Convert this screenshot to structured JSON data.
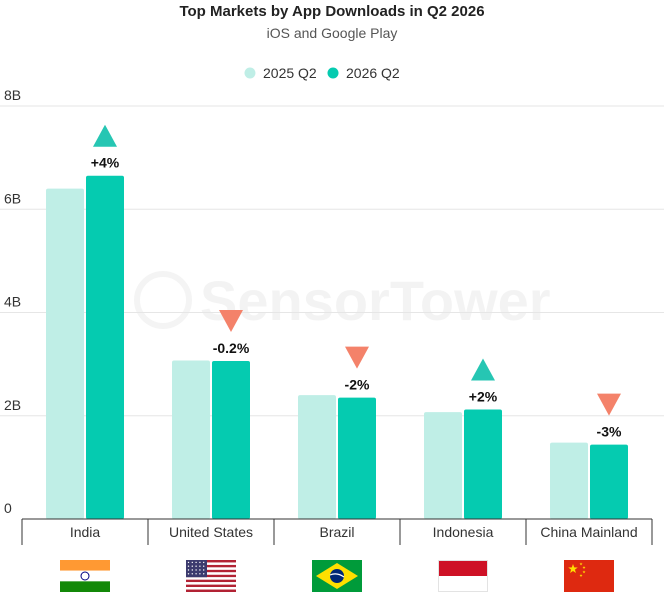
{
  "chart_data": {
    "type": "bar",
    "title": "Top Markets by App Downloads in Q2 2026",
    "subtitle": "iOS and Google Play",
    "categories": [
      "India",
      "United States",
      "Brazil",
      "Indonesia",
      "China Mainland"
    ],
    "series": [
      {
        "name": "2025 Q2",
        "values": [
          6.4,
          3.07,
          2.4,
          2.07,
          1.48
        ],
        "color": "#bfeee6"
      },
      {
        "name": "2026 Q2",
        "values": [
          6.65,
          3.06,
          2.35,
          2.12,
          1.44
        ],
        "color": "#05cbb0"
      }
    ],
    "changes": [
      {
        "label": "+4%",
        "direction": "up"
      },
      {
        "label": "-0.2%",
        "direction": "down"
      },
      {
        "label": "-2%",
        "direction": "down"
      },
      {
        "label": "+2%",
        "direction": "up"
      },
      {
        "label": "-3%",
        "direction": "down"
      }
    ],
    "yticks": [
      {
        "value": 0,
        "label": "0"
      },
      {
        "value": 2,
        "label": "2B"
      },
      {
        "value": 4,
        "label": "4B"
      },
      {
        "value": 6,
        "label": "6B"
      },
      {
        "value": 8,
        "label": "8B"
      }
    ],
    "ylim": [
      0,
      8
    ],
    "grid": true,
    "legend_position": "top-center",
    "up_color": "#26c6b3",
    "down_color": "#f4826a",
    "flags": [
      "india-flag",
      "usa-flag",
      "brazil-flag",
      "indonesia-flag",
      "china-flag"
    ],
    "watermark": "SensorTower"
  }
}
